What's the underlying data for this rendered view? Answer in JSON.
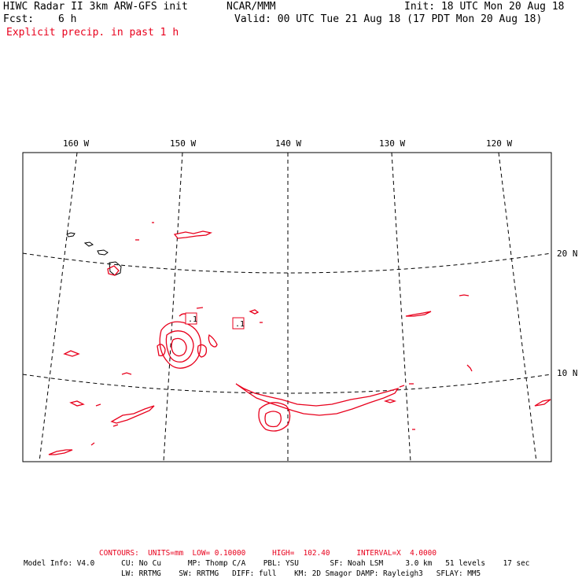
{
  "header": {
    "title_left": "HIWC Radar II 3km ARW-GFS init",
    "title_mid": "NCAR/MMM",
    "init": "Init: 18 UTC Mon 20 Aug 18",
    "fcst_label": "Fcst:",
    "fcst_value": "6 h",
    "valid": "Valid: 00 UTC Tue 21 Aug 18 (17 PDT Mon 20 Aug 18)",
    "field": "Explicit precip. in past 1 h"
  },
  "map": {
    "lon_labels": [
      "160 W",
      "150 W",
      "140 W",
      "130 W",
      "120 W"
    ],
    "lat_labels": [
      "20 N",
      "10 N"
    ],
    "contour_labels": [
      ".1",
      ".1"
    ],
    "colors": {
      "precip": "#e8001c",
      "grid": "#000000",
      "land": "#000000"
    }
  },
  "footer": {
    "contours": "CONTOURS:  UNITS=mm  LOW= 0.10000      HIGH=  102.40      INTERVAL=X  4.0000",
    "model_line1": "Model Info: V4.0      CU: No Cu      MP: Thomp C/A    PBL: YSU       SF: Noah LSM     3.0 km   51 levels    17 sec",
    "model_line2": "LW: RRTMG    SW: RRTMG   DIFF: full    KM: 2D Smagor DAMP: Rayleigh3   SFLAY: MM5"
  }
}
